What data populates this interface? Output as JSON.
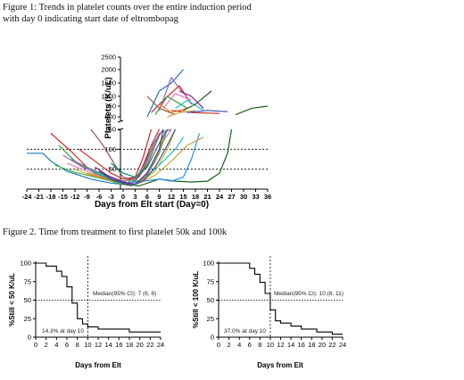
{
  "figure1": {
    "caption": "Figure 1: Trends in platelet counts over the entire induction period with day 0 indicating start date of eltrombopag"
  },
  "figure2": {
    "caption": "Figure 2. Time from treatment to first platelet 50k and 100k"
  },
  "chart_data": [
    {
      "type": "line",
      "title": "",
      "xlabel": "Days from Elt start (Day=0)",
      "ylabel": "Platelets (K/uL)",
      "x_ticks": [
        "-24",
        "-21",
        "-18",
        "-15",
        "-12",
        "-9",
        "-6",
        "-3",
        "0",
        "3",
        "6",
        "9",
        "12",
        "15",
        "18",
        "21",
        "24",
        "27",
        "30",
        "33",
        "36"
      ],
      "xlim": [
        -24,
        36
      ],
      "y_axis_broken": true,
      "y_lower_ticks": [
        "50",
        "100",
        "150"
      ],
      "y_lower_range": [
        0,
        150
      ],
      "y_upper_ticks": [
        "500",
        "750",
        "1000",
        "1500",
        "2000",
        "2500"
      ],
      "y_upper_range": [
        400,
        2500
      ],
      "reference_lines": [
        50,
        100
      ],
      "grid": false,
      "legend": "none",
      "series": [
        {
          "color": "#1f77b4",
          "points": [
            [
              -24,
              90
            ],
            [
              -20,
              90
            ],
            [
              -18,
              70
            ],
            [
              -14,
              45
            ],
            [
              -8,
              25
            ],
            [
              -3,
              15
            ],
            [
              0,
              12
            ],
            [
              3,
              20
            ],
            [
              6,
              80
            ],
            [
              9,
              140
            ]
          ]
        },
        {
          "color": "#d62728",
          "points": [
            [
              -18,
              140
            ],
            [
              -13,
              95
            ],
            [
              -9,
              55
            ],
            [
              -5,
              30
            ],
            [
              0,
              18
            ],
            [
              4,
              35
            ],
            [
              7,
              110
            ],
            [
              9,
              150
            ]
          ]
        },
        {
          "color": "#2ca02c",
          "points": [
            [
              -16,
              110
            ],
            [
              -12,
              70
            ],
            [
              -7,
              40
            ],
            [
              -2,
              22
            ],
            [
              1,
              15
            ],
            [
              5,
              45
            ],
            [
              8,
              120
            ],
            [
              10,
              150
            ]
          ]
        },
        {
          "color": "#9467bd",
          "points": [
            [
              -15,
              85
            ],
            [
              -10,
              55
            ],
            [
              -5,
              35
            ],
            [
              0,
              20
            ],
            [
              4,
              30
            ],
            [
              6,
              75
            ],
            [
              9,
              140
            ],
            [
              12,
              150
            ]
          ]
        },
        {
          "color": "#8c564b",
          "points": [
            [
              -8,
              150
            ],
            [
              -5,
              110
            ],
            [
              -2,
              60
            ],
            [
              0,
              30
            ],
            [
              3,
              20
            ],
            [
              6,
              60
            ],
            [
              9,
              135
            ]
          ]
        },
        {
          "color": "#e377c2",
          "points": [
            [
              -14,
              65
            ],
            [
              -9,
              45
            ],
            [
              -4,
              25
            ],
            [
              0,
              14
            ],
            [
              4,
              18
            ],
            [
              7,
              55
            ],
            [
              10,
              120
            ],
            [
              12,
              150
            ]
          ]
        },
        {
          "color": "#17becf",
          "points": [
            [
              -10,
              60
            ],
            [
              -6,
              38
            ],
            [
              -2,
              20
            ],
            [
              1,
              12
            ],
            [
              5,
              25
            ],
            [
              9,
              60
            ],
            [
              13,
              100
            ],
            [
              15,
              130
            ]
          ]
        },
        {
          "color": "#bcbd22",
          "points": [
            [
              -12,
              50
            ],
            [
              -8,
              35
            ],
            [
              -3,
              20
            ],
            [
              1,
              10
            ],
            [
              4,
              15
            ],
            [
              8,
              45
            ],
            [
              11,
              100
            ],
            [
              13,
              150
            ]
          ]
        },
        {
          "color": "#ff7f0e",
          "points": [
            [
              -9,
              40
            ],
            [
              -5,
              28
            ],
            [
              -1,
              15
            ],
            [
              2,
              8
            ],
            [
              5,
              22
            ],
            [
              8,
              70
            ],
            [
              10,
              130
            ],
            [
              11,
              150
            ]
          ]
        },
        {
          "color": "#7f7f7f",
          "points": [
            [
              -13,
              75
            ],
            [
              -8,
              50
            ],
            [
              -3,
              30
            ],
            [
              0,
              20
            ],
            [
              3,
              25
            ],
            [
              6,
              70
            ],
            [
              8,
              130
            ]
          ]
        },
        {
          "color": "#1a5e1a",
          "points": [
            [
              -6,
              45
            ],
            [
              -3,
              25
            ],
            [
              0,
              12
            ],
            [
              4,
              8
            ],
            [
              9,
              25
            ],
            [
              13,
              20
            ],
            [
              17,
              18
            ],
            [
              21,
              20
            ],
            [
              24,
              40
            ],
            [
              26,
              90
            ],
            [
              27,
              150
            ]
          ]
        },
        {
          "color": "#2196f3",
          "points": [
            [
              5,
              20
            ],
            [
              9,
              25
            ],
            [
              12,
              20
            ],
            [
              15,
              30
            ],
            [
              17,
              75
            ],
            [
              19,
              140
            ]
          ]
        },
        {
          "color": "#d2a040",
          "points": [
            [
              4,
              15
            ],
            [
              8,
              35
            ],
            [
              12,
              70
            ],
            [
              16,
              110
            ],
            [
              20,
              130
            ]
          ]
        },
        {
          "color": "#7b1fa2",
          "points": [
            [
              -7,
              55
            ],
            [
              -4,
              35
            ],
            [
              0,
              18
            ],
            [
              3,
              12
            ],
            [
              6,
              40
            ],
            [
              9,
              100
            ],
            [
              10,
              150
            ]
          ]
        },
        {
          "color": "#c62828",
          "points": [
            [
              -11,
              100
            ],
            [
              -7,
              70
            ],
            [
              -3,
              40
            ],
            [
              0,
              25
            ],
            [
              3,
              30
            ],
            [
              5,
              80
            ],
            [
              7,
              150
            ]
          ]
        },
        {
          "color": "#4caf50",
          "points": [
            [
              -17,
              60
            ],
            [
              -12,
              42
            ],
            [
              -6,
              28
            ],
            [
              -1,
              15
            ],
            [
              3,
              10
            ],
            [
              6,
              35
            ],
            [
              9,
              90
            ],
            [
              11,
              150
            ]
          ]
        },
        {
          "color": "#3949ab",
          "points": [
            [
              -4,
              30
            ],
            [
              -1,
              18
            ],
            [
              2,
              10
            ],
            [
              5,
              20
            ],
            [
              8,
              55
            ],
            [
              11,
              110
            ],
            [
              13,
              150
            ]
          ]
        },
        {
          "color": "#00897b",
          "points": [
            [
              -3,
              65
            ],
            [
              0,
              40
            ],
            [
              3,
              30
            ],
            [
              6,
              55
            ],
            [
              9,
              115
            ],
            [
              11,
              150
            ]
          ]
        }
      ],
      "upper_series": [
        {
          "color": "#1f77b4",
          "points": [
            [
              6,
              500
            ],
            [
              9,
              1200
            ],
            [
              12,
              1500
            ],
            [
              15,
              2000
            ]
          ]
        },
        {
          "color": "#d62728",
          "points": [
            [
              7,
              600
            ],
            [
              10,
              900
            ],
            [
              14,
              1400
            ],
            [
              17,
              800
            ]
          ]
        },
        {
          "color": "#2ca02c",
          "points": [
            [
              8,
              550
            ],
            [
              11,
              1000
            ],
            [
              16,
              700
            ]
          ]
        },
        {
          "color": "#9467bd",
          "points": [
            [
              9,
              650
            ],
            [
              12,
              1700
            ],
            [
              15,
              1100
            ]
          ]
        },
        {
          "color": "#8c564b",
          "points": [
            [
              6,
              1000
            ],
            [
              9,
              700
            ],
            [
              13,
              550
            ]
          ]
        },
        {
          "color": "#e377c2",
          "points": [
            [
              10,
              700
            ],
            [
              13,
              1100
            ],
            [
              17,
              900
            ]
          ]
        },
        {
          "color": "#ff7f0e",
          "points": [
            [
              9,
              800
            ],
            [
              12,
              600
            ],
            [
              16,
              700
            ]
          ]
        },
        {
          "color": "#17becf",
          "points": [
            [
              13,
              700
            ],
            [
              16,
              900
            ],
            [
              20,
              650
            ]
          ]
        },
        {
          "color": "#1a5e1a",
          "points": [
            [
              15,
              650
            ],
            [
              18,
              800
            ],
            [
              22,
              1200
            ]
          ]
        },
        {
          "color": "#c62828",
          "points": [
            [
              12,
              650
            ],
            [
              17,
              600
            ],
            [
              24,
              580
            ]
          ]
        },
        {
          "color": "#7b1fa2",
          "points": [
            [
              14,
              1200
            ],
            [
              17,
              1000
            ],
            [
              20,
              700
            ]
          ]
        },
        {
          "color": "#3949ab",
          "points": [
            [
              16,
              600
            ],
            [
              21,
              650
            ],
            [
              26,
              620
            ]
          ]
        },
        {
          "color": "#1a5e1a",
          "points": [
            [
              28,
              550
            ],
            [
              32,
              700
            ],
            [
              36,
              750
            ]
          ]
        },
        {
          "color": "#d2a040",
          "points": [
            [
              11,
              500
            ],
            [
              14,
              600
            ],
            [
              18,
              650
            ]
          ]
        }
      ]
    },
    {
      "type": "line",
      "title": "",
      "xlabel": "Days from Elt",
      "ylabel": "%Still < 50 K/uL",
      "x_ticks": [
        "0",
        "2",
        "4",
        "6",
        "8",
        "10",
        "12",
        "14",
        "16",
        "18",
        "20",
        "22",
        "24"
      ],
      "y_ticks": [
        "0",
        "25",
        "50",
        "75",
        "100"
      ],
      "xlim": [
        0,
        24
      ],
      "ylim": [
        0,
        100
      ],
      "reference_line_y": 50,
      "reference_line_x": 10,
      "annotation_median": "Median(95% CI): 7 (6, 8)",
      "annotation_day10": "14.3% at day 10",
      "step": [
        [
          0,
          100
        ],
        [
          2,
          100
        ],
        [
          2,
          96
        ],
        [
          4,
          96
        ],
        [
          4,
          89
        ],
        [
          5,
          89
        ],
        [
          5,
          82
        ],
        [
          6,
          82
        ],
        [
          6,
          68
        ],
        [
          7,
          68
        ],
        [
          7,
          46
        ],
        [
          8,
          46
        ],
        [
          8,
          25
        ],
        [
          9,
          25
        ],
        [
          9,
          18
        ],
        [
          10,
          18
        ],
        [
          10,
          14
        ],
        [
          12,
          14
        ],
        [
          12,
          11
        ],
        [
          18,
          11
        ],
        [
          18,
          7
        ],
        [
          24,
          7
        ]
      ]
    },
    {
      "type": "line",
      "title": "",
      "xlabel": "Days from Elt",
      "ylabel": "%Still < 100 K/uL",
      "x_ticks": [
        "0",
        "2",
        "4",
        "6",
        "8",
        "10",
        "12",
        "14",
        "16",
        "18",
        "20",
        "22",
        "24"
      ],
      "y_ticks": [
        "0",
        "25",
        "50",
        "75",
        "100"
      ],
      "xlim": [
        0,
        24
      ],
      "ylim": [
        0,
        100
      ],
      "reference_line_y": 50,
      "reference_line_x": 10,
      "annotation_median": "Median(95% CI): 10 (8, 11)",
      "annotation_day10": "37.0% at day 10",
      "step": [
        [
          0,
          100
        ],
        [
          6,
          100
        ],
        [
          6,
          93
        ],
        [
          7,
          93
        ],
        [
          7,
          85
        ],
        [
          8,
          85
        ],
        [
          8,
          74
        ],
        [
          9,
          74
        ],
        [
          9,
          59
        ],
        [
          10,
          59
        ],
        [
          10,
          37
        ],
        [
          11,
          37
        ],
        [
          11,
          22
        ],
        [
          12,
          22
        ],
        [
          12,
          19
        ],
        [
          14,
          19
        ],
        [
          14,
          15
        ],
        [
          16,
          15
        ],
        [
          16,
          11
        ],
        [
          19,
          11
        ],
        [
          19,
          7
        ],
        [
          22,
          7
        ],
        [
          22,
          4
        ],
        [
          24,
          4
        ]
      ]
    }
  ]
}
